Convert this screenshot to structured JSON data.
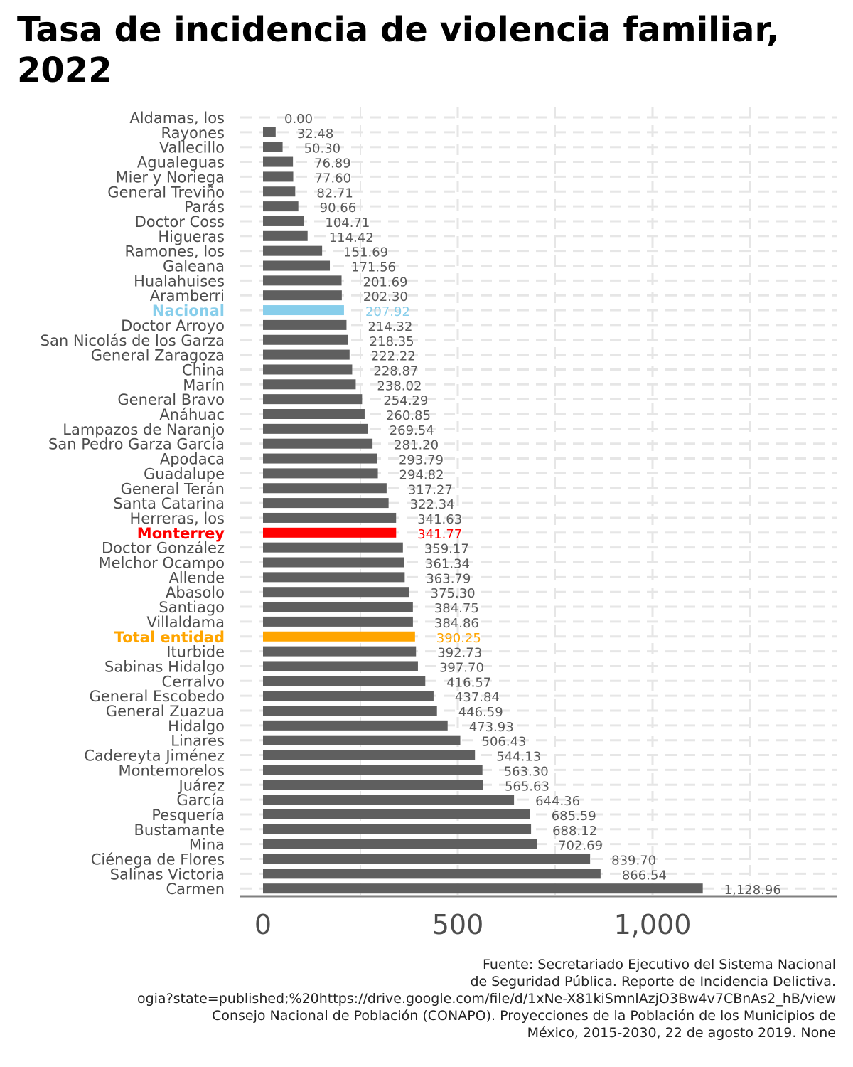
{
  "chart_data": {
    "type": "bar",
    "orientation": "horizontal",
    "title": "Tasa de incidencia de violencia familiar, 2022",
    "xlabel": "",
    "ylabel": "",
    "xlim": [
      0,
      1400
    ],
    "x_ticks": [
      0,
      500,
      1000
    ],
    "x_tick_labels": [
      "0",
      "500",
      "1,000"
    ],
    "grid": true,
    "legend": "none",
    "colors": {
      "default": "#5f5f5f",
      "Nacional": "#87ceeb",
      "Monterrey": "#ff0000",
      "Total entidad": "#ffa500"
    },
    "categories": [
      "Aldamas, los",
      "Rayones",
      "Vallecillo",
      "Agualeguas",
      "Mier y Noriega",
      "General Treviño",
      "Parás",
      "Doctor Coss",
      "Higueras",
      "Ramones, los",
      "Galeana",
      "Hualahuises",
      "Aramberri",
      "Nacional",
      "Doctor Arroyo",
      "San Nicolás de los Garza",
      "General Zaragoza",
      "China",
      "Marín",
      "General Bravo",
      "Anáhuac",
      "Lampazos de Naranjo",
      "San Pedro Garza García",
      "Apodaca",
      "Guadalupe",
      "General Terán",
      "Santa Catarina",
      "Herreras, los",
      "Monterrey",
      "Doctor González",
      "Melchor Ocampo",
      "Allende",
      "Abasolo",
      "Santiago",
      "Villaldama",
      "Total entidad",
      "Iturbide",
      "Sabinas Hidalgo",
      "Cerralvo",
      "General Escobedo",
      "General Zuazua",
      "Hidalgo",
      "Linares",
      "Cadereyta Jiménez",
      "Montemorelos",
      "Juárez",
      "García",
      "Pesquería",
      "Bustamante",
      "Mina",
      "Ciénega de Flores",
      "Salinas Victoria",
      "Carmen"
    ],
    "values": [
      0,
      32.48,
      50.3,
      76.89,
      77.6,
      82.71,
      90.66,
      104.71,
      114.42,
      151.69,
      171.56,
      201.69,
      202.3,
      207.92,
      214.32,
      218.35,
      222.22,
      228.87,
      238.02,
      254.29,
      260.85,
      269.54,
      281.2,
      293.79,
      294.82,
      317.27,
      322.34,
      341.63,
      341.77,
      359.17,
      361.34,
      363.79,
      375.3,
      384.75,
      384.86,
      390.25,
      392.73,
      397.7,
      416.57,
      437.84,
      446.59,
      473.93,
      506.43,
      544.13,
      563.3,
      565.63,
      644.36,
      685.59,
      688.12,
      702.69,
      839.7,
      866.54,
      1128.96
    ],
    "value_labels": [
      "0.00",
      "32.48",
      "50.30",
      "76.89",
      "77.60",
      "82.71",
      "90.66",
      "104.71",
      "114.42",
      "151.69",
      "171.56",
      "201.69",
      "202.30",
      "207.92",
      "214.32",
      "218.35",
      "222.22",
      "228.87",
      "238.02",
      "254.29",
      "260.85",
      "269.54",
      "281.20",
      "293.79",
      "294.82",
      "317.27",
      "322.34",
      "341.63",
      "341.77",
      "359.17",
      "361.34",
      "363.79",
      "375.30",
      "384.75",
      "384.86",
      "390.25",
      "392.73",
      "397.70",
      "416.57",
      "437.84",
      "446.59",
      "473.93",
      "506.43",
      "544.13",
      "563.30",
      "565.63",
      "644.36",
      "685.59",
      "688.12",
      "702.69",
      "839.70",
      "866.54",
      "1,128.96"
    ],
    "source_lines": [
      "Fuente: Secretariado Ejecutivo del Sistema Nacional",
      "de Seguridad Pública. Reporte de Incidencia Delictiva.",
      "ogia?state=published;%20https://drive.google.com/file/d/1xNe-X81kiSmnlAzjO3Bw4v7CBnAs2_hB/view",
      "Consejo Nacional de Población (CONAPO). Proyecciones de la Población de los Municipios de",
      "México, 2015-2030, 22 de agosto 2019. None"
    ]
  }
}
